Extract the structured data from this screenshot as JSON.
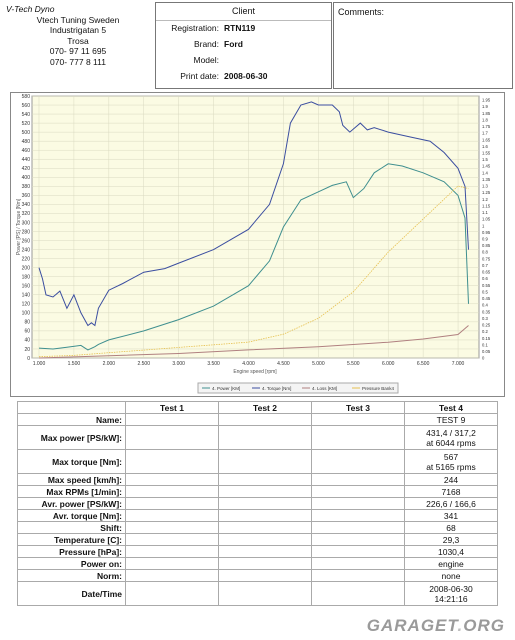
{
  "company": {
    "title": "V-Tech Dyno",
    "lines": [
      "Vtech Tuning Sweden",
      "Industrigatan 5",
      "Trosa",
      "070- 97 11 695",
      "070- 777 8 111"
    ]
  },
  "client": {
    "heading": "Client",
    "fields": [
      {
        "label": "Registration:",
        "value": "RTN119"
      },
      {
        "label": "Brand:",
        "value": "Ford"
      },
      {
        "label": "Model:",
        "value": ""
      },
      {
        "label": "Print date:",
        "value": "2008-06-30"
      }
    ]
  },
  "comments": {
    "label": "Comments:"
  },
  "chart_data": {
    "type": "line",
    "xlabel": "Engine speed [rpm]",
    "ylabel": "Power [PS] / Torque [Nm]",
    "xlim": [
      0.9,
      7.3
    ],
    "ylim": [
      0,
      580
    ],
    "y2lim": [
      0,
      1.98
    ],
    "x_ticks": [
      "1.000",
      "1.500",
      "2.000",
      "2.500",
      "3.000",
      "3.500",
      "4.000",
      "4.500",
      "5.000",
      "5.500",
      "6.000",
      "6.500",
      "7.000"
    ],
    "y_ticks": [
      "0",
      "20",
      "40",
      "60",
      "80",
      "100",
      "120",
      "140",
      "160",
      "180",
      "200",
      "220",
      "240",
      "260",
      "280",
      "300",
      "320",
      "340",
      "360",
      "380",
      "400",
      "420",
      "440",
      "460",
      "480",
      "500",
      "520",
      "540",
      "560",
      "580"
    ],
    "y2_ticks": [
      "0",
      "0.05",
      "0.1",
      "0.15",
      "0.2",
      "0.25",
      "0.3",
      "0.35",
      "0.4",
      "0.45",
      "0.5",
      "0.55",
      "0.6",
      "0.65",
      "0.7",
      "0.75",
      "0.8",
      "0.85",
      "0.9",
      "0.95",
      "1",
      "1.05",
      "1.1",
      "1.15",
      "1.2",
      "1.25",
      "1.3",
      "1.35",
      "1.4",
      "1.45",
      "1.5",
      "1.55",
      "1.6",
      "1.65",
      "1.7",
      "1.75",
      "1.8",
      "1.85",
      "1.9",
      "1.95"
    ],
    "legend": [
      "4. Power [KM]",
      "4. Torque [Nm]",
      "4. Loss [KM]",
      "Pressure Bank4"
    ],
    "series": [
      {
        "name": "4. Power [KM]",
        "color": "#3f8f8f",
        "axis": "left",
        "x": [
          1.0,
          1.2,
          1.4,
          1.6,
          1.7,
          1.8,
          1.85,
          2.0,
          2.5,
          3.0,
          3.5,
          4.0,
          4.3,
          4.5,
          4.75,
          5.0,
          5.2,
          5.4,
          5.5,
          5.65,
          5.8,
          6.0,
          6.2,
          6.5,
          6.8,
          7.0,
          7.1,
          7.15
        ],
        "y": [
          22,
          20,
          24,
          28,
          18,
          25,
          30,
          40,
          60,
          85,
          115,
          160,
          215,
          290,
          350,
          368,
          382,
          390,
          355,
          375,
          410,
          430,
          425,
          410,
          390,
          360,
          310,
          120
        ]
      },
      {
        "name": "4. Torque [Nm]",
        "color": "#3b4ea0",
        "axis": "left",
        "x": [
          1.0,
          1.05,
          1.1,
          1.2,
          1.3,
          1.4,
          1.5,
          1.6,
          1.7,
          1.75,
          1.8,
          1.85,
          2.0,
          2.2,
          2.5,
          2.8,
          3.0,
          3.5,
          4.0,
          4.3,
          4.5,
          4.6,
          4.75,
          4.9,
          5.0,
          5.2,
          5.3,
          5.35,
          5.45,
          5.6,
          5.7,
          5.8,
          6.0,
          6.3,
          6.6,
          6.8,
          7.0,
          7.1,
          7.15
        ],
        "y": [
          200,
          175,
          140,
          135,
          148,
          110,
          140,
          100,
          72,
          78,
          72,
          110,
          150,
          165,
          190,
          198,
          210,
          240,
          285,
          340,
          430,
          520,
          560,
          567,
          560,
          560,
          545,
          515,
          500,
          520,
          505,
          510,
          500,
          490,
          480,
          455,
          420,
          380,
          240
        ]
      },
      {
        "name": "4. Loss [KM]",
        "color": "#b08080",
        "axis": "left",
        "x": [
          1.0,
          2.0,
          3.0,
          4.0,
          5.0,
          6.0,
          6.5,
          7.0,
          7.15
        ],
        "y": [
          0,
          5,
          10,
          18,
          25,
          35,
          42,
          52,
          72
        ]
      },
      {
        "name": "Pressure Bank4",
        "color": "#e6c050",
        "axis": "right",
        "x": [
          1.0,
          1.5,
          2.0,
          2.5,
          3.0,
          3.5,
          4.0,
          4.5,
          5.0,
          5.5,
          6.0,
          6.4,
          6.8,
          7.0,
          7.15
        ],
        "y": [
          0.01,
          0.02,
          0.04,
          0.06,
          0.08,
          0.1,
          0.12,
          0.18,
          0.3,
          0.5,
          0.8,
          1.0,
          1.2,
          1.3,
          1.28
        ]
      }
    ]
  },
  "table": {
    "headers": [
      "",
      "Test 1",
      "Test 2",
      "Test 3",
      "Test 4"
    ],
    "rows": [
      {
        "label": "Name:",
        "test4": "TEST 9"
      },
      {
        "label": "Max power [PS/kW]:",
        "test4": "431,4 / 317,2",
        "test4b": "at 6044 rpms"
      },
      {
        "label": "Max torque [Nm]:",
        "test4": "567",
        "test4b": "at 5165 rpms"
      },
      {
        "label": "Max speed [km/h]:",
        "test4": "244"
      },
      {
        "label": "Max RPMs [1/min]:",
        "test4": "7168"
      },
      {
        "label": "Avr. power [PS/kW]:",
        "test4": "226,6 / 166,6"
      },
      {
        "label": "Avr. torque [Nm]:",
        "test4": "341"
      },
      {
        "label": "Shift:",
        "test4": "68"
      },
      {
        "label": "Temperature [C]:",
        "test4": "29,3"
      },
      {
        "label": "Pressure [hPa]:",
        "test4": "1030,4"
      },
      {
        "label": "Power on:",
        "test4": "engine"
      },
      {
        "label": "Norm:",
        "test4": "none"
      },
      {
        "label": "Date/Time",
        "test4": "2008-06-30",
        "test4b": "14:21:16"
      }
    ]
  },
  "watermark": {
    "text": "GARAGET",
    "dot": ".",
    "suffix": "ORG"
  }
}
